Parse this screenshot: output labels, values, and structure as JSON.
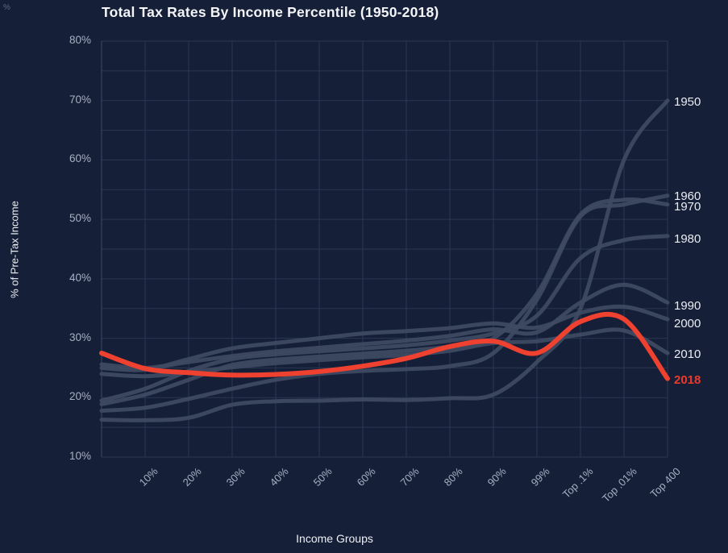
{
  "corner_marks": "%",
  "colors": {
    "background": "#161f38",
    "grid": "#2a3753",
    "axis_edge": "#3a4a68",
    "series_gray": "#3f4a63",
    "series_red": "#ee4130",
    "title_text": "#f4f5f8",
    "tick_text": "#a7b0c2",
    "year_label_text": "#e9ecf2"
  },
  "chart_data": {
    "type": "line",
    "title": "Total Tax Rates By Income Percentile (1950-2018)",
    "xlabel": "Income Groups",
    "ylabel": "% of Pre-Tax Income",
    "ylim": [
      10,
      80
    ],
    "grid": "on",
    "legend_position": "right-edge-labels",
    "y_ticks": [
      80,
      70,
      60,
      50,
      40,
      30,
      20,
      10
    ],
    "y_tick_labels": [
      "80%",
      "70%",
      "60%",
      "50%",
      "40%",
      "30%",
      "20%",
      "10%"
    ],
    "categories": [
      "",
      "10%",
      "20%",
      "30%",
      "40%",
      "50%",
      "60%",
      "70%",
      "80%",
      "90%",
      "99%",
      "Top .1%",
      "Top .01%",
      "Top 400"
    ],
    "x_tick_labels": [
      "10%",
      "20%",
      "30%",
      "40%",
      "50%",
      "60%",
      "70%",
      "80%",
      "90%",
      "99%",
      "Top .1%",
      "Top .01%",
      "Top 400"
    ],
    "series": [
      {
        "name": "1950",
        "color": "#3f4a63",
        "values": [
          16.3,
          16.2,
          16.6,
          18.8,
          19.4,
          19.5,
          19.7,
          19.6,
          19.9,
          20.5,
          26.0,
          35.0,
          60.0,
          70.0
        ]
      },
      {
        "name": "1960",
        "color": "#3f4a63",
        "values": [
          17.8,
          18.3,
          19.8,
          21.5,
          23.0,
          24.0,
          24.5,
          24.8,
          25.3,
          27.5,
          36.5,
          50.5,
          52.5,
          54.0
        ]
      },
      {
        "name": "1970",
        "color": "#3f4a63",
        "values": [
          18.9,
          20.5,
          23.0,
          25.5,
          26.4,
          26.9,
          27.4,
          27.9,
          28.6,
          30.0,
          37.5,
          50.8,
          53.3,
          52.5
        ]
      },
      {
        "name": "1980",
        "color": "#3f4a63",
        "values": [
          19.5,
          21.5,
          24.5,
          26.5,
          27.3,
          27.8,
          28.3,
          28.8,
          29.6,
          30.8,
          33.8,
          43.5,
          46.5,
          47.2
        ]
      },
      {
        "name": "1990",
        "color": "#3f4a63",
        "values": [
          25.6,
          25.0,
          26.0,
          27.0,
          27.8,
          28.4,
          29.0,
          29.6,
          30.4,
          31.5,
          31.0,
          36.0,
          39.0,
          36.0
        ]
      },
      {
        "name": "2000",
        "color": "#3f4a63",
        "values": [
          25.0,
          24.7,
          26.5,
          28.3,
          29.2,
          30.0,
          30.8,
          31.2,
          31.7,
          32.5,
          31.8,
          34.3,
          35.3,
          33.2
        ]
      },
      {
        "name": "2010",
        "color": "#3f4a63",
        "values": [
          24.0,
          23.6,
          24.3,
          25.1,
          25.8,
          26.3,
          26.8,
          27.2,
          27.9,
          29.2,
          29.5,
          30.6,
          31.3,
          27.5
        ]
      },
      {
        "name": "2018",
        "color": "#ee4130",
        "values": [
          27.5,
          24.9,
          24.2,
          23.8,
          23.9,
          24.4,
          25.3,
          26.6,
          28.6,
          29.5,
          27.5,
          32.8,
          33.2,
          23.2
        ]
      }
    ]
  }
}
